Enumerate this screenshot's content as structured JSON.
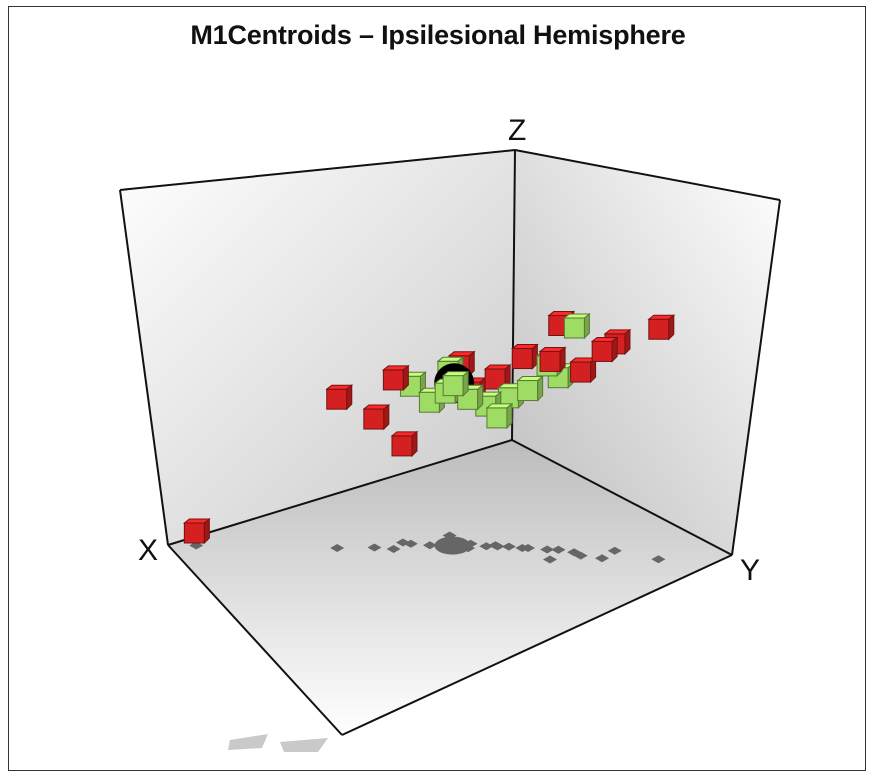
{
  "chart_data": {
    "type": "scatter",
    "title": "M1Centroids  – Ipsilesional Hemisphere",
    "axes": {
      "x": "X",
      "y": "Y",
      "z": "Z"
    },
    "grid": false,
    "legend": "none",
    "colors": {
      "red": "#d42020",
      "green": "#9fdc64",
      "centroid": "#000000",
      "shadow": "#666666"
    },
    "series": [
      {
        "color": "red",
        "points": [
          [
            0.95,
            0.05,
            0.05
          ],
          [
            0.7,
            0.3,
            0.52
          ],
          [
            0.56,
            0.38,
            0.34
          ],
          [
            0.63,
            0.36,
            0.45
          ],
          [
            0.45,
            0.42,
            0.5
          ],
          [
            0.4,
            0.55,
            0.58
          ],
          [
            0.3,
            0.68,
            0.78
          ],
          [
            0.35,
            0.72,
            0.69
          ],
          [
            0.2,
            0.78,
            0.72
          ],
          [
            0.15,
            0.9,
            0.8
          ],
          [
            0.28,
            0.75,
            0.64
          ],
          [
            0.25,
            0.8,
            0.72
          ],
          [
            0.46,
            0.48,
            0.62
          ],
          [
            0.6,
            0.4,
            0.59
          ],
          [
            0.44,
            0.5,
            0.53
          ],
          [
            0.36,
            0.61,
            0.66
          ]
        ]
      },
      {
        "color": "green",
        "points": [
          [
            0.55,
            0.4,
            0.55
          ],
          [
            0.48,
            0.46,
            0.6
          ],
          [
            0.5,
            0.48,
            0.54
          ],
          [
            0.46,
            0.52,
            0.52
          ],
          [
            0.38,
            0.58,
            0.52
          ],
          [
            0.35,
            0.62,
            0.55
          ],
          [
            0.3,
            0.68,
            0.6
          ],
          [
            0.32,
            0.66,
            0.64
          ],
          [
            0.28,
            0.72,
            0.78
          ],
          [
            0.52,
            0.44,
            0.5
          ],
          [
            0.42,
            0.54,
            0.49
          ],
          [
            0.49,
            0.5,
            0.57
          ],
          [
            0.4,
            0.56,
            0.45
          ]
        ]
      },
      {
        "color": "centroid",
        "points": [
          [
            0.48,
            0.48,
            0.56
          ]
        ]
      }
    ]
  }
}
